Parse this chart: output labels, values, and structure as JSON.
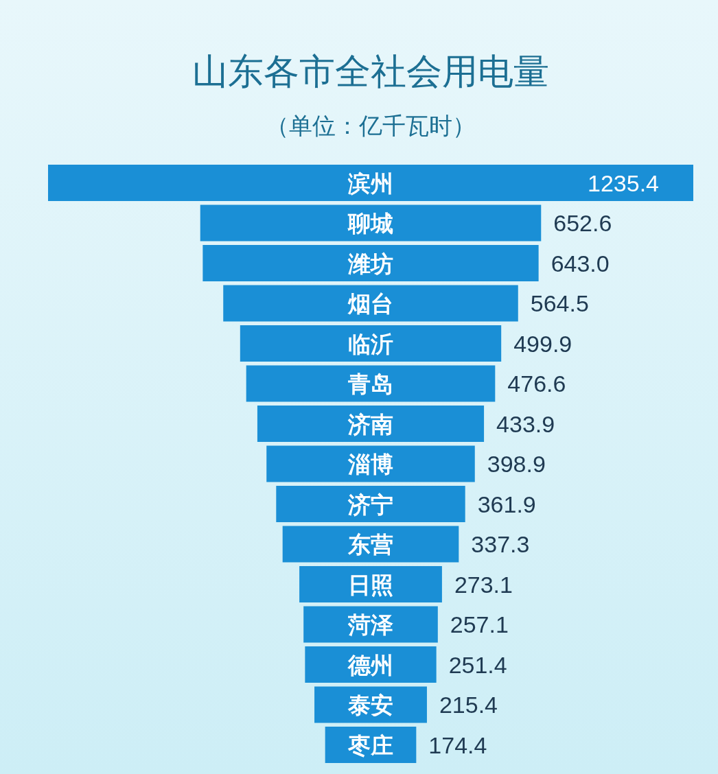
{
  "chart_data": {
    "type": "other",
    "title": "山东各市全社会用电量",
    "subtitle": "（单位：亿千瓦时）",
    "categories": [
      "滨州",
      "聊城",
      "潍坊",
      "烟台",
      "临沂",
      "青岛",
      "济南",
      "淄博",
      "济宁",
      "东营",
      "日照",
      "菏泽",
      "德州",
      "泰安",
      "枣庄"
    ],
    "values": [
      1235.4,
      652.6,
      643.0,
      564.5,
      499.9,
      476.6,
      433.9,
      398.9,
      361.9,
      337.3,
      273.1,
      257.1,
      251.4,
      215.4,
      174.4
    ],
    "color": "#1a8fd6",
    "value_labels": [
      "1235.4",
      "652.6",
      "643.0",
      "564.5",
      "499.9",
      "476.6",
      "433.9",
      "398.9",
      "361.9",
      "337.3",
      "273.1",
      "257.1",
      "251.4",
      "215.4",
      "174.4"
    ]
  }
}
